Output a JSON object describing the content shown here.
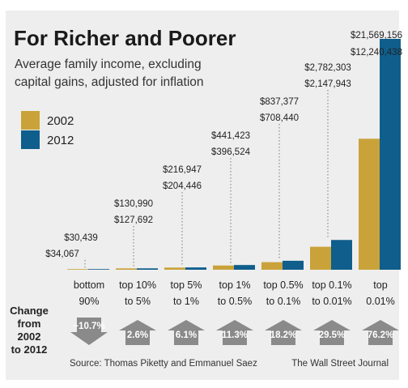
{
  "title": "For Richer and Poorer",
  "subtitle_line1": "Average family income, excluding",
  "subtitle_line2": "capital gains, adjusted for inflation",
  "change_label": [
    "Change",
    "from",
    "2002",
    "to 2012"
  ],
  "source": "Source: Thomas Piketty and Emmanuel Saez",
  "credit": "The Wall Street Journal",
  "colors": {
    "y2002": "#c9a33a",
    "y2012": "#0f5e8c",
    "arrow": "#8a8a8a",
    "panel": "#eeeeee"
  },
  "chart_data": {
    "type": "bar",
    "title": "For Richer and Poorer",
    "subtitle": "Average family income, excluding capital gains, adjusted for inflation",
    "categories": [
      [
        "bottom",
        "90%"
      ],
      [
        "top 10%",
        "to 5%"
      ],
      [
        "top 5%",
        "to 1%"
      ],
      [
        "top 1%",
        "to 0.5%"
      ],
      [
        "top 0.5%",
        "to 0.1%"
      ],
      [
        "top 0.1%",
        "to 0.01%"
      ],
      [
        "top",
        "0.01%"
      ]
    ],
    "series": [
      {
        "name": "2002",
        "values": [
          34067,
          127692,
          204446,
          396524,
          708440,
          2147943,
          12240438
        ],
        "labels": [
          "$34,067",
          "$127,692",
          "$204,446",
          "$396,524",
          "$708,440",
          "$2,147,943",
          "$12,240,438"
        ]
      },
      {
        "name": "2012",
        "values": [
          30439,
          130990,
          216947,
          441423,
          837377,
          2782303,
          21569156
        ],
        "labels": [
          "$30,439",
          "$130,990",
          "$216,947",
          "$441,423",
          "$837,377",
          "$2,782,303",
          "$21,569,156"
        ]
      }
    ],
    "change": [
      {
        "label": "−10.7%",
        "direction": "down"
      },
      {
        "label": "2.6%",
        "direction": "up"
      },
      {
        "label": "6.1%",
        "direction": "up"
      },
      {
        "label": "11.3%",
        "direction": "up"
      },
      {
        "label": "18.2%",
        "direction": "up"
      },
      {
        "label": "29.5%",
        "direction": "up"
      },
      {
        "label": "76.2%",
        "direction": "up"
      }
    ],
    "ylim": [
      0,
      21569156
    ],
    "legend": "top-left",
    "grid": false
  }
}
